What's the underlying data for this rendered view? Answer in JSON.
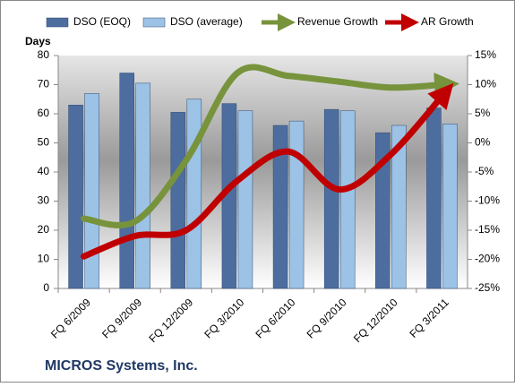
{
  "chart_data": {
    "type": "bar",
    "title": "MICROS Systems, Inc.",
    "y_label": "Days",
    "categories": [
      "FQ 6/2009",
      "FQ 9/2009",
      "FQ 12/2009",
      "FQ 3/2010",
      "FQ 6/2010",
      "FQ 9/2010",
      "FQ 12/2010",
      "FQ 3/2011"
    ],
    "series": [
      {
        "name": "DSO (EOQ)",
        "color": "#4d6d9e",
        "values": [
          63,
          74,
          60.5,
          63.5,
          56,
          61.5,
          53.5,
          62
        ]
      },
      {
        "name": "DSO (average)",
        "color": "#9cc3e6",
        "values": [
          67,
          70.5,
          65,
          61,
          57.5,
          61,
          56,
          56.5
        ]
      },
      {
        "name": "Revenue Growth",
        "color": "#77933c",
        "axis": "y2",
        "values": [
          -13,
          -13.5,
          -3,
          12,
          11.5,
          10.5,
          9.5,
          10
        ]
      },
      {
        "name": "AR Growth",
        "color": "#c00000",
        "axis": "y2",
        "values": [
          -19.5,
          -16,
          -15,
          -6.5,
          -1.5,
          -8,
          -2,
          8
        ]
      }
    ],
    "ylim": [
      0,
      80
    ],
    "yticks": [
      0,
      10,
      20,
      30,
      40,
      50,
      60,
      70,
      80
    ],
    "y2lim": [
      -25,
      15
    ],
    "y2ticks": [
      {
        "value": -25,
        "label": "-25%"
      },
      {
        "value": -20,
        "label": "-20%"
      },
      {
        "value": -15,
        "label": "-15%"
      },
      {
        "value": -10,
        "label": "-10%"
      },
      {
        "value": -5,
        "label": "-5%"
      },
      {
        "value": 0,
        "label": "0%"
      },
      {
        "value": 5,
        "label": "5%"
      },
      {
        "value": 10,
        "label": "10%"
      },
      {
        "value": 15,
        "label": "15%"
      }
    ],
    "legend": "top",
    "grid": false
  }
}
